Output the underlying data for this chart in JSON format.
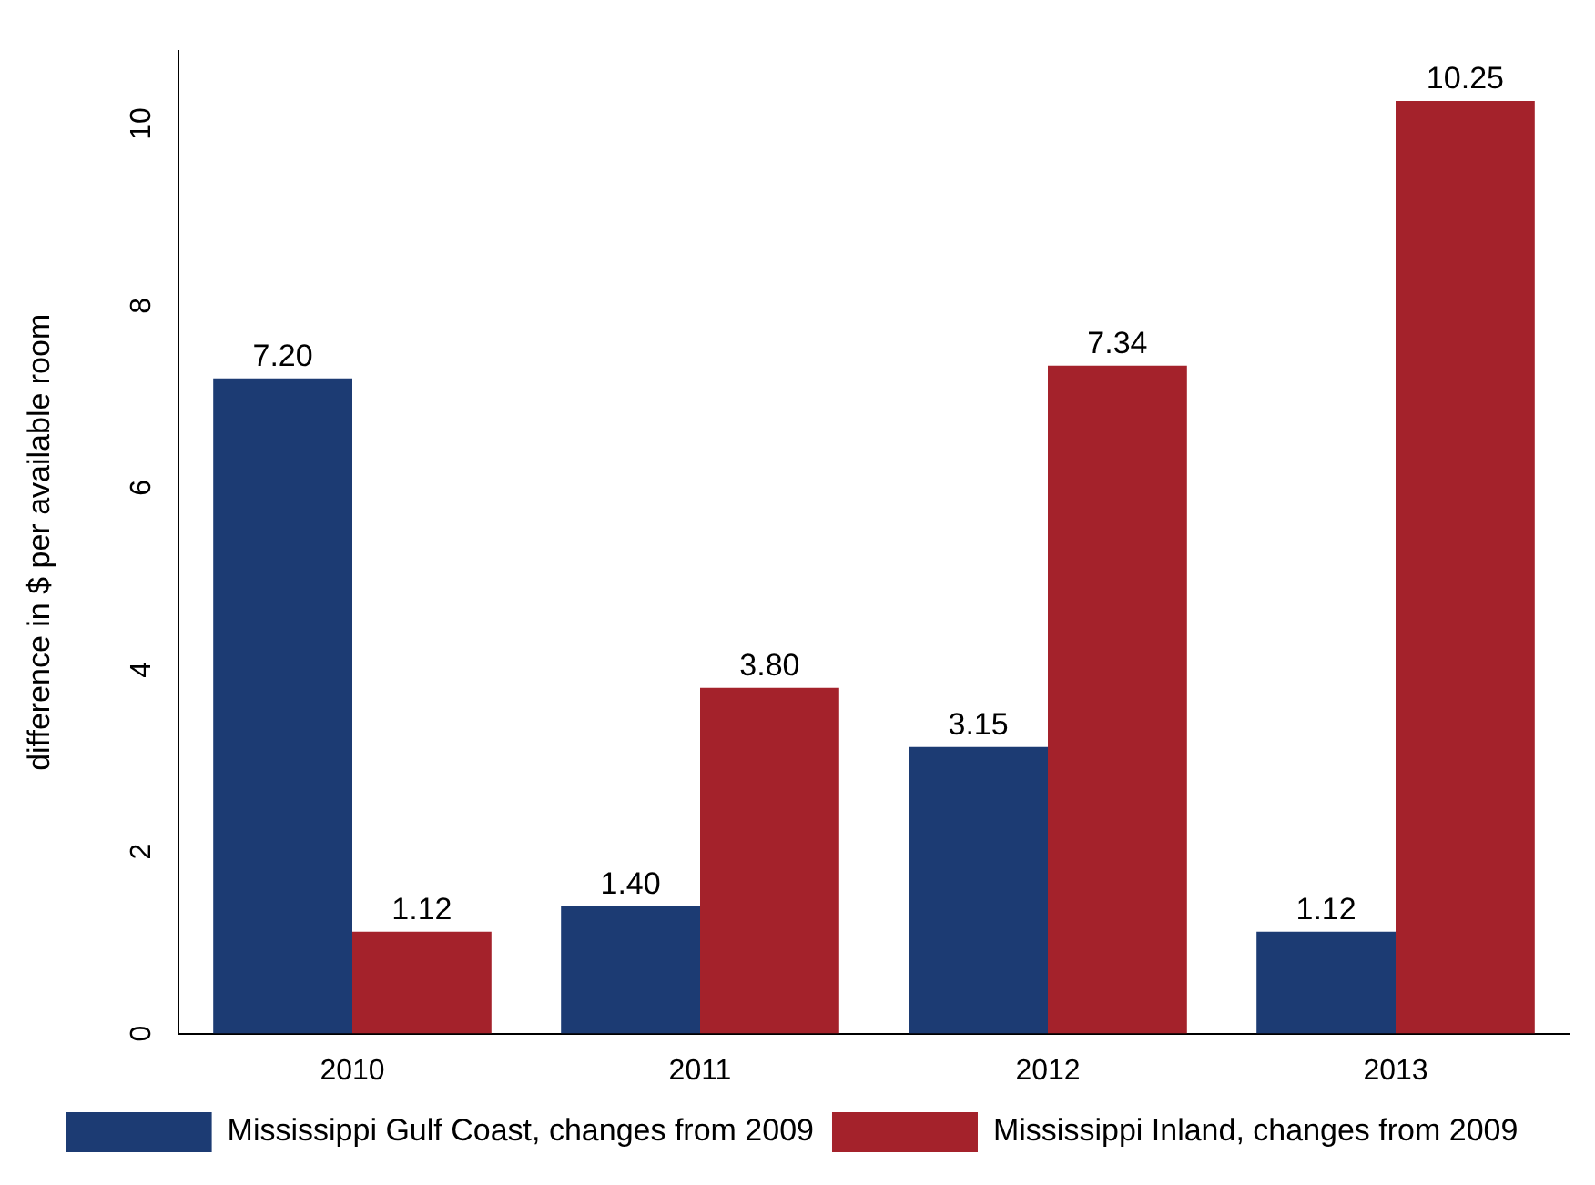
{
  "chart_data": {
    "type": "bar",
    "ylabel": "difference in $ per available room",
    "categories": [
      "2010",
      "2011",
      "2012",
      "2013"
    ],
    "series": [
      {
        "name": "Mississippi Gulf Coast, changes from 2009",
        "color": "#1c3b73",
        "values": [
          7.2,
          1.4,
          3.15,
          1.12
        ],
        "value_labels": [
          "7.20",
          "1.40",
          "3.15",
          "1.12"
        ]
      },
      {
        "name": "Mississippi Inland, changes from 2009",
        "color": "#a4222b",
        "values": [
          1.12,
          3.8,
          7.34,
          10.25
        ],
        "value_labels": [
          "1.12",
          "3.80",
          "7.34",
          "10.25"
        ]
      }
    ],
    "ylim": [
      0,
      10.8
    ],
    "yticks": [
      0,
      2,
      4,
      6,
      8,
      10
    ],
    "grid": false,
    "legend": "bottom"
  }
}
